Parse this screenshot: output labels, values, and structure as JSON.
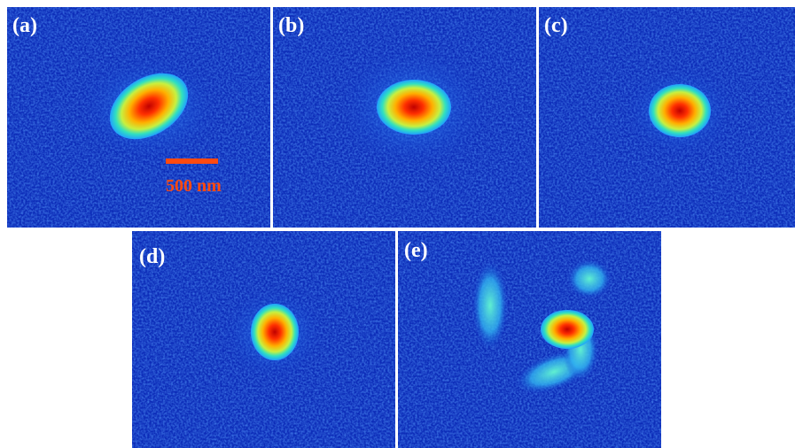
{
  "panels": [
    {
      "label": "(a)"
    },
    {
      "label": "(b)"
    },
    {
      "label": "(c)"
    },
    {
      "label": "(d)"
    },
    {
      "label": "(e)"
    }
  ],
  "scale_bar": {
    "label": "500 nm"
  }
}
